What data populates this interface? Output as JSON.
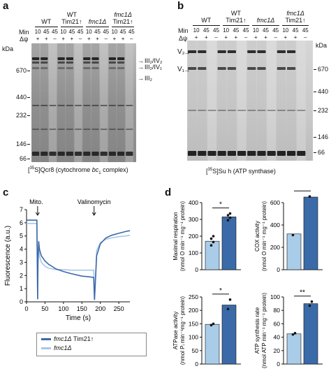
{
  "panels": {
    "a": {
      "letter": "a",
      "min_label": "Min",
      "dpsi_label": "Δψ",
      "kda_label": "kDa",
      "groups": [
        {
          "l1": "WT",
          "l2": "",
          "arrow": false,
          "italic": false
        },
        {
          "l1": "WT",
          "l2": "Tim21",
          "arrow": true,
          "italic": false
        },
        {
          "l1": "fmc1Δ",
          "l2": "",
          "arrow": false,
          "italic": true
        },
        {
          "l1": "fmc1Δ",
          "l2": "Tim21",
          "arrow": true,
          "italic": true
        }
      ],
      "lane_minutes": [
        "10",
        "45",
        "45",
        "10",
        "45",
        "45",
        "10",
        "45",
        "45",
        "10",
        "45",
        "45"
      ],
      "lane_dpsi": [
        "+",
        "+",
        "–",
        "+",
        "+",
        "–",
        "+",
        "+",
        "–",
        "+",
        "+",
        "–"
      ],
      "markers": [
        "670",
        "440",
        "232",
        "146",
        "66"
      ],
      "band_labels": [
        "III₂/IV₂",
        "III₂/IV₁",
        "III₂"
      ],
      "caption_pre": "[",
      "caption_sup": "35",
      "caption_mid": "S]Qcr8 (cytochrome ",
      "caption_it": "bc",
      "caption_sub": "1",
      "caption_post": " complex)"
    },
    "b": {
      "letter": "b",
      "min_label": "Min",
      "dpsi_label": "Δψ",
      "kda_label": "kDa",
      "groups": [
        {
          "l1": "WT",
          "l2": "",
          "arrow": false,
          "italic": false
        },
        {
          "l1": "WT",
          "l2": "Tim21",
          "arrow": true,
          "italic": false
        },
        {
          "l1": "fmc1Δ",
          "l2": "",
          "arrow": false,
          "italic": true
        },
        {
          "l1": "fmc1Δ",
          "l2": "Tim21",
          "arrow": true,
          "italic": true
        }
      ],
      "lane_minutes": [
        "10",
        "45",
        "45",
        "10",
        "45",
        "45",
        "10",
        "45",
        "45",
        "10",
        "45",
        "45"
      ],
      "lane_dpsi": [
        "+",
        "+",
        "–",
        "+",
        "+",
        "–",
        "+",
        "+",
        "–",
        "+",
        "+",
        "–"
      ],
      "markers": [
        "670",
        "440",
        "232",
        "146",
        "66"
      ],
      "band_labels": [
        "V₂",
        "V₁"
      ],
      "caption_pre": "[",
      "caption_sup": "35",
      "caption_mid": "S]Su h (ATP synthase)",
      "caption_it": "",
      "caption_sub": "",
      "caption_post": ""
    },
    "c": {
      "letter": "c",
      "annotations": [
        "Mito.",
        "Valinomycin"
      ],
      "legend": [
        {
          "name": "fmc1Δ",
          "suffix": " Tim21",
          "arrow": true,
          "color": "#3b6aa8"
        },
        {
          "name": "fmc1Δ",
          "suffix": "",
          "arrow": false,
          "color": "#a8c8e6"
        }
      ]
    },
    "d": {
      "letter": "d",
      "light_color": "#a9cde9",
      "dark_color": "#3b6aa8"
    }
  },
  "chart_data": [
    {
      "type": "line",
      "panel": "c",
      "xlabel": "Time (s)",
      "ylabel": "Fluorescence (a.u.)",
      "xlim": [
        0,
        280
      ],
      "ylim": [
        0,
        7
      ],
      "x_ticks": [
        "0",
        "50",
        "100",
        "150",
        "200",
        "250"
      ],
      "y_ticks": [
        "0",
        "1",
        "2",
        "3",
        "4",
        "5",
        "6",
        "7"
      ],
      "series": [
        {
          "name": "fmc1Δ Tim21",
          "color": "#3b6aa8",
          "x": [
            0,
            15,
            28,
            30,
            31,
            33,
            35,
            40,
            50,
            60,
            80,
            100,
            120,
            150,
            170,
            182,
            184,
            186,
            190,
            200,
            215,
            230,
            250,
            270,
            280
          ],
          "y": [
            6.2,
            6.2,
            6.2,
            0.2,
            3.0,
            4.6,
            4.0,
            3.5,
            3.1,
            2.85,
            2.5,
            2.3,
            2.15,
            1.95,
            1.9,
            1.85,
            0.15,
            1.2,
            3.5,
            4.4,
            4.85,
            5.05,
            5.2,
            5.35,
            5.4
          ]
        },
        {
          "name": "fmc1Δ",
          "color": "#a8c8e6",
          "x": [
            0,
            15,
            28,
            30,
            31,
            33,
            35,
            40,
            50,
            60,
            80,
            100,
            120,
            150,
            170,
            182,
            184,
            186,
            190,
            200,
            215,
            230,
            250,
            270,
            280
          ],
          "y": [
            5.95,
            5.95,
            5.95,
            0.2,
            3.3,
            4.3,
            3.5,
            3.0,
            2.7,
            2.55,
            2.45,
            2.45,
            2.4,
            2.4,
            2.4,
            2.4,
            0.15,
            1.4,
            3.9,
            4.5,
            4.75,
            4.85,
            4.95,
            5.0,
            5.05
          ]
        }
      ]
    },
    {
      "type": "bar",
      "panel": "d",
      "id": "d1",
      "categories": [
        "fmc1Δ",
        "fmc1Δ Tim21"
      ],
      "values": [
        170,
        315
      ],
      "points": [
        [
          145,
          165,
          185,
          200
        ],
        [
          295,
          310,
          325,
          335
        ]
      ],
      "ylabel": "Maximal respiration (nmol O min⁻¹ mg⁻¹ protein)",
      "ylim": [
        0,
        400
      ],
      "y_ticks": [
        "0",
        "100",
        "200",
        "300",
        "400"
      ],
      "significance": "*"
    },
    {
      "type": "bar",
      "panel": "d",
      "id": "d2",
      "categories": [
        "fmc1Δ",
        "fmc1Δ Tim21"
      ],
      "values": [
        320,
        650
      ],
      "points": [
        [
          310
        ],
        [
          655
        ]
      ],
      "ylabel": "COX activity (nmol O min⁻¹ mg⁻¹ protein)",
      "ylim": [
        0,
        600
      ],
      "y_ticks": [
        "0",
        "200",
        "400",
        "600"
      ],
      "significance": "**"
    },
    {
      "type": "bar",
      "panel": "d",
      "id": "d3",
      "categories": [
        "fmc1Δ",
        "fmc1Δ Tim21"
      ],
      "values": [
        148,
        220
      ],
      "points": [
        [
          145,
          150
        ],
        [
          205,
          240
        ]
      ],
      "ylabel": "ATPase activity (nmol Pᵢ min⁻¹mg⁻¹ protein)",
      "ylim": [
        0,
        250
      ],
      "y_ticks": [
        "0",
        "50",
        "100",
        "150",
        "200",
        "250"
      ],
      "significance": "*"
    },
    {
      "type": "bar",
      "panel": "d",
      "id": "d4",
      "categories": [
        "fmc1Δ",
        "fmc1Δ Tim21"
      ],
      "values": [
        45,
        90
      ],
      "points": [
        [
          44,
          46
        ],
        [
          87,
          93
        ]
      ],
      "ylabel": "ATP synthesis rate (nmol ATP min⁻¹ mg⁻¹ protein)",
      "ylim": [
        0,
        100
      ],
      "y_ticks": [
        "0",
        "20",
        "40",
        "60",
        "80",
        "100"
      ],
      "significance": "**"
    }
  ]
}
